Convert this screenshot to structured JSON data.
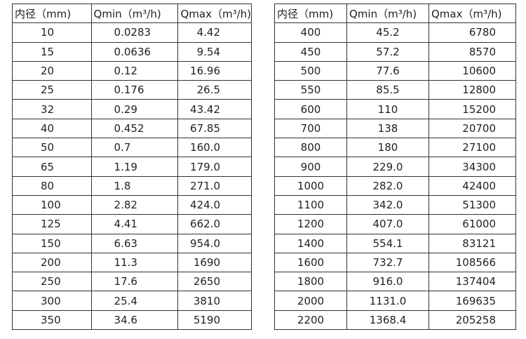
{
  "tables": [
    {
      "header": [
        "内径（mm)",
        "Qmin（m³/h)",
        "Qmax（m³/h)"
      ],
      "rows": [
        [
          "10",
          "0.0283",
          "4.42"
        ],
        [
          "15",
          "0.0636",
          "9.54"
        ],
        [
          "20",
          "0.12",
          "16.96"
        ],
        [
          "25",
          "0.176",
          "26.5"
        ],
        [
          "32",
          "0.29",
          "43.42"
        ],
        [
          "40",
          "0.452",
          "67.85"
        ],
        [
          "50",
          "0.7",
          "160.0"
        ],
        [
          "65",
          "1.19",
          "179.0"
        ],
        [
          "80",
          "1.8",
          "271.0"
        ],
        [
          "100",
          "2.82",
          "424.0"
        ],
        [
          "125",
          "4.41",
          "662.0"
        ],
        [
          "150",
          "6.63",
          "954.0"
        ],
        [
          "200",
          "11.3",
          "1690"
        ],
        [
          "250",
          "17.6",
          "2650"
        ],
        [
          "300",
          "25.4",
          "3810"
        ],
        [
          "350",
          "34.6",
          "5190"
        ]
      ]
    },
    {
      "header": [
        "内径（mm)",
        "Qmin（m³/h)",
        "Qmax（m³/h)"
      ],
      "rows": [
        [
          "400",
          "45.2",
          "6780"
        ],
        [
          "450",
          "57.2",
          "8570"
        ],
        [
          "500",
          "77.6",
          "10600"
        ],
        [
          "550",
          "85.5",
          "12800"
        ],
        [
          "600",
          "110",
          "15200"
        ],
        [
          "700",
          "138",
          "20700"
        ],
        [
          "800",
          "180",
          "27100"
        ],
        [
          "900",
          "229.0",
          "34300"
        ],
        [
          "1000",
          "282.0",
          "42400"
        ],
        [
          "1100",
          "342.0",
          "51300"
        ],
        [
          "1200",
          "407.0",
          "61000"
        ],
        [
          "1400",
          "554.1",
          "83121"
        ],
        [
          "1600",
          "732.7",
          "108566"
        ],
        [
          "1800",
          "916.0",
          "137404"
        ],
        [
          "2000",
          "1131.0",
          "169635"
        ],
        [
          "2200",
          "1368.4",
          "205258"
        ]
      ]
    }
  ]
}
